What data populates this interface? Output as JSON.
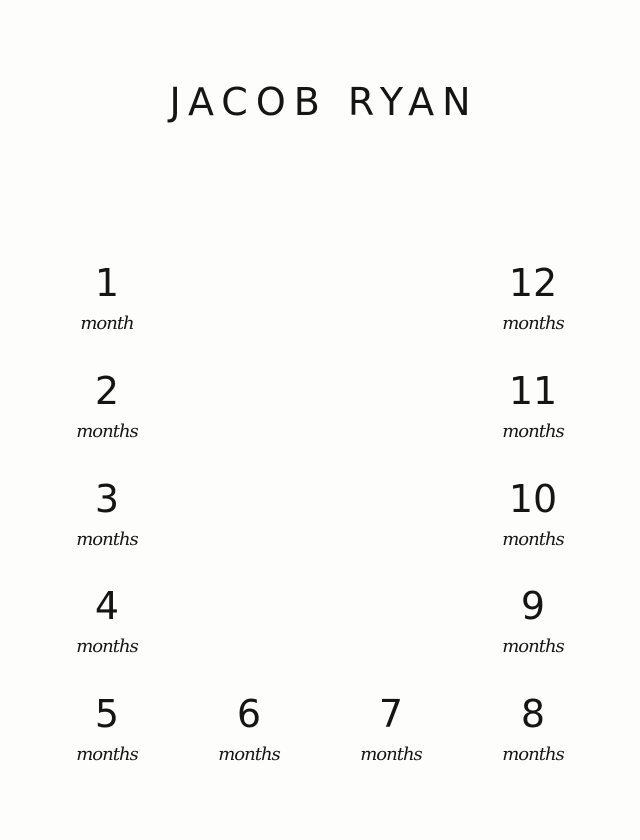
{
  "title": "JACOB RYAN",
  "milestones": [
    {
      "number": "1",
      "unit": "month"
    },
    {
      "number": "2",
      "unit": "months"
    },
    {
      "number": "3",
      "unit": "months"
    },
    {
      "number": "4",
      "unit": "months"
    },
    {
      "number": "5",
      "unit": "months"
    },
    {
      "number": "6",
      "unit": "months"
    },
    {
      "number": "7",
      "unit": "months"
    },
    {
      "number": "8",
      "unit": "months"
    },
    {
      "number": "9",
      "unit": "months"
    },
    {
      "number": "10",
      "unit": "months"
    },
    {
      "number": "11",
      "unit": "months"
    },
    {
      "number": "12",
      "unit": "months"
    }
  ]
}
